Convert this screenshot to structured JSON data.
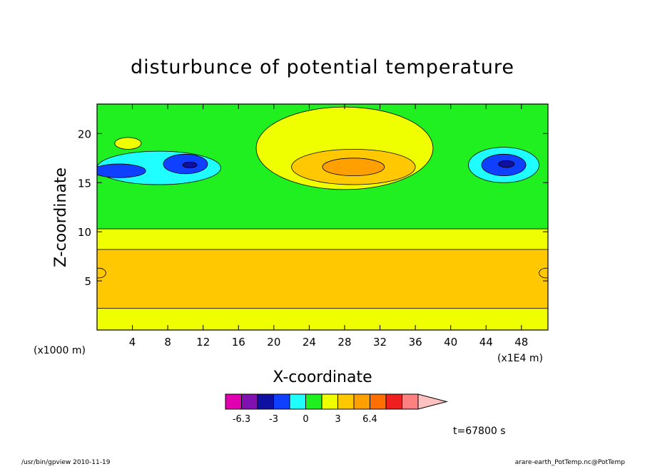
{
  "chart_data": {
    "type": "heatmap",
    "title": "disturbunce of potential temperature",
    "xlabel": "X-coordinate",
    "ylabel": "Z-coordinate",
    "x_unit": "(x1E4 m)",
    "y_unit": "(x1000 m)",
    "xlim": [
      0,
      51
    ],
    "ylim": [
      0,
      23
    ],
    "x_ticks": [
      {
        "value": 4,
        "label": "4"
      },
      {
        "value": 8,
        "label": "8"
      },
      {
        "value": 12,
        "label": "12"
      },
      {
        "value": 16,
        "label": "16"
      },
      {
        "value": 20,
        "label": "20"
      },
      {
        "value": 24,
        "label": "24"
      },
      {
        "value": 28,
        "label": "28"
      },
      {
        "value": 32,
        "label": "32"
      },
      {
        "value": 36,
        "label": "36"
      },
      {
        "value": 40,
        "label": "40"
      },
      {
        "value": 44,
        "label": "44"
      },
      {
        "value": 48,
        "label": "48"
      }
    ],
    "y_ticks": [
      {
        "value": 5,
        "label": "5"
      },
      {
        "value": 10,
        "label": "10"
      },
      {
        "value": 15,
        "label": "15"
      },
      {
        "value": 20,
        "label": "20"
      }
    ],
    "colorbar": {
      "colors": [
        "#e000b0",
        "#8010b0",
        "#1010a0",
        "#1040ff",
        "#20ffff",
        "#20f020",
        "#f0ff00",
        "#ffc800",
        "#ffa000",
        "#ff7000",
        "#f02020",
        "#ff8080",
        "#ffc0c0"
      ],
      "labels": [
        {
          "boundary": 1,
          "text": "-6.3"
        },
        {
          "boundary": 3,
          "text": "-3"
        },
        {
          "boundary": 5,
          "text": "0"
        },
        {
          "boundary": 7,
          "text": "3"
        },
        {
          "boundary": 9,
          "text": "6.4"
        }
      ]
    },
    "field_regions": [
      {
        "level": "#20f020",
        "shape": "rect",
        "x": [
          0,
          51
        ],
        "z": [
          0,
          23
        ]
      },
      {
        "level": "#f0ff00",
        "shape": "rect",
        "x": [
          0,
          51
        ],
        "z": [
          0,
          10.3
        ]
      },
      {
        "level": "#ffc800",
        "shape": "rect",
        "x": [
          0,
          51
        ],
        "z": [
          2.2,
          8.2
        ]
      },
      {
        "level": "#f0ff00",
        "shape": "ellipse",
        "cx": 28,
        "cz": 18.5,
        "rx": 10,
        "rz": 4.2
      },
      {
        "level": "#ffc800",
        "shape": "ellipse",
        "cx": 29,
        "cz": 16.6,
        "rx": 7,
        "rz": 1.8
      },
      {
        "level": "#ffa000",
        "shape": "ellipse",
        "cx": 29,
        "cz": 16.6,
        "rx": 3.5,
        "rz": 0.9
      },
      {
        "level": "#f0ff00",
        "shape": "ellipse",
        "cx": 3.5,
        "cz": 19.0,
        "rx": 1.5,
        "rz": 0.6
      },
      {
        "level": "#20ffff",
        "shape": "ellipse",
        "cx": 7,
        "cz": 16.5,
        "rx": 7,
        "rz": 1.7
      },
      {
        "level": "#1040ff",
        "shape": "ellipse",
        "cx": 2.5,
        "cz": 16.2,
        "rx": 3,
        "rz": 0.7
      },
      {
        "level": "#1040ff",
        "shape": "ellipse",
        "cx": 10,
        "cz": 16.9,
        "rx": 2.5,
        "rz": 1.0
      },
      {
        "level": "#1010a0",
        "shape": "ellipse",
        "cx": 10.5,
        "cz": 16.8,
        "rx": 0.8,
        "rz": 0.3
      },
      {
        "level": "#20ffff",
        "shape": "ellipse",
        "cx": 46,
        "cz": 16.8,
        "rx": 4,
        "rz": 1.8
      },
      {
        "level": "#1040ff",
        "shape": "ellipse",
        "cx": 46,
        "cz": 16.8,
        "rx": 2.5,
        "rz": 1.1
      },
      {
        "level": "#1010a0",
        "shape": "ellipse",
        "cx": 46.3,
        "cz": 16.9,
        "rx": 0.9,
        "rz": 0.35
      },
      {
        "level": "#ffc800",
        "shape": "ellipse",
        "cx": 0.2,
        "cz": 5.8,
        "rx": 0.8,
        "rz": 0.5
      },
      {
        "level": "#ffc800",
        "shape": "ellipse",
        "cx": 50.8,
        "cz": 5.8,
        "rx": 0.8,
        "rz": 0.5
      }
    ]
  },
  "footer": {
    "left": "/usr/bin/gpview  2010-11-19",
    "right": "arare-earth_PotTemp.nc@PotTemp"
  },
  "time_label": "t=67800 s"
}
